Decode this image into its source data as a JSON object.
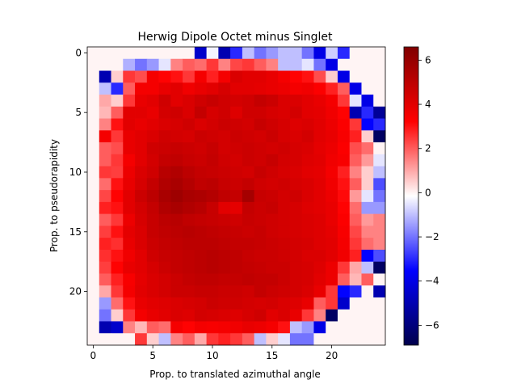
{
  "chart_data": {
    "type": "heatmap",
    "title": "Herwig Dipole Octet minus Singlet",
    "xlabel": "Prop. to translated azimuthal angle",
    "ylabel": "Prop. to pseudorapidity",
    "xlim": [
      -0.5,
      24.5
    ],
    "ylim": [
      24.5,
      -0.5
    ],
    "x_ticks": [
      "0",
      "5",
      "10",
      "15",
      "20"
    ],
    "y_ticks": [
      "0",
      "5",
      "10",
      "15",
      "20"
    ],
    "colormap": "seismic",
    "color_range": [
      -6.9,
      6.6
    ],
    "colorbar_ticks": [
      "−6",
      "−4",
      "−2",
      "0",
      "2",
      "4",
      "6"
    ],
    "values": [
      [
        0,
        0,
        0,
        0,
        0,
        0,
        0,
        0,
        0,
        -4.5,
        -0.3,
        -5,
        -3,
        -1,
        -2,
        -1.5,
        -1,
        -1,
        -2,
        -4,
        -0.8,
        -3,
        0,
        0,
        0
      ],
      [
        0,
        0,
        0,
        -1.2,
        -2,
        -1.5,
        -0.5,
        1.5,
        2,
        1.8,
        2.5,
        1.5,
        2.3,
        2.5,
        2,
        1.5,
        -1,
        -1,
        -0.5,
        -2,
        -4,
        0,
        0,
        0,
        0
      ],
      [
        0,
        -5,
        0.5,
        2.5,
        2.2,
        3.5,
        3.2,
        3,
        2.5,
        3.5,
        2.8,
        3.5,
        4.2,
        4,
        4,
        3.8,
        3.5,
        3.2,
        3,
        2.2,
        0.5,
        -4,
        0,
        0,
        0
      ],
      [
        0,
        -1,
        -3,
        2,
        3.5,
        3.5,
        3.8,
        4,
        3.6,
        3.8,
        4,
        4.3,
        4,
        4,
        3.9,
        3.8,
        3.7,
        3.5,
        3.6,
        3.3,
        2.8,
        2,
        -4,
        0,
        0
      ],
      [
        0,
        1,
        0.5,
        2.5,
        3.8,
        4,
        4.5,
        4,
        4.2,
        4.5,
        4.7,
        4.5,
        4.4,
        4.5,
        4.8,
        4.6,
        4.2,
        4.2,
        4,
        3.8,
        3.5,
        2.5,
        -0.5,
        -4,
        0
      ],
      [
        0,
        0.8,
        2,
        4,
        4,
        3.8,
        4.4,
        4.5,
        4.2,
        4.8,
        4.3,
        4.5,
        4.1,
        4.5,
        4.5,
        4.3,
        4.2,
        4.4,
        4,
        3.9,
        3.6,
        3.2,
        -5,
        -3,
        -5.5
      ],
      [
        0,
        1.5,
        3,
        4,
        3.8,
        4,
        4.2,
        4.3,
        4.5,
        4.2,
        4.4,
        4.6,
        4.5,
        4.4,
        4.7,
        4.5,
        4.3,
        4.1,
        4.2,
        4,
        3.7,
        3.3,
        2.5,
        -3.5,
        -3
      ],
      [
        0,
        3.5,
        2.5,
        3.8,
        4,
        4.2,
        4.5,
        4.4,
        4.3,
        4.6,
        4.5,
        4.4,
        4.6,
        4.5,
        4.4,
        4.6,
        4.3,
        4.2,
        4.4,
        4,
        3.8,
        3.4,
        2.8,
        0.5,
        -6.5
      ],
      [
        0,
        2,
        2.2,
        3.8,
        4,
        4.5,
        4.6,
        4.7,
        4.6,
        4.5,
        4.7,
        4.4,
        4.5,
        4.6,
        4.5,
        4.4,
        4.5,
        4.3,
        4.2,
        3.9,
        3.7,
        3.3,
        2.2,
        1.8,
        0
      ],
      [
        0,
        2,
        2.5,
        3.5,
        4,
        4.4,
        4.8,
        4.9,
        4.7,
        4.6,
        4.8,
        4.5,
        4.4,
        4.6,
        4.5,
        4.7,
        4.4,
        4.3,
        4.1,
        4,
        3.6,
        3.4,
        2,
        1.2,
        -0.5
      ],
      [
        0,
        2.5,
        2.4,
        3.7,
        4.2,
        4.5,
        5.1,
        5.3,
        5,
        4.8,
        4.7,
        4.6,
        4.5,
        4.4,
        4.7,
        4.5,
        4.3,
        4.2,
        4,
        3.9,
        3.5,
        2.8,
        1.5,
        0.5,
        -1
      ],
      [
        0,
        1.8,
        3,
        3.8,
        4.3,
        4.8,
        5.3,
        5.5,
        5.2,
        4.9,
        5,
        4.7,
        4.6,
        4.8,
        4.5,
        4.4,
        4.5,
        4.3,
        4.2,
        4,
        3.6,
        3,
        2,
        0.5,
        -2.5
      ],
      [
        0,
        2.3,
        3.2,
        4,
        4.6,
        5,
        5.5,
        5.8,
        5.5,
        5.4,
        5.2,
        4.9,
        4.8,
        5.6,
        4.7,
        4.6,
        4.4,
        4.5,
        4.2,
        4,
        3.7,
        3.1,
        1.2,
        -0.5,
        -2
      ],
      [
        0,
        2.8,
        3,
        4,
        4.4,
        4.8,
        5.3,
        5.5,
        5.3,
        5.1,
        4.7,
        4,
        3.9,
        4.8,
        4.6,
        4.7,
        4.4,
        4.3,
        4.1,
        4,
        3.8,
        3.2,
        1.8,
        -1.5,
        -1.5
      ],
      [
        0,
        2,
        2.5,
        3.7,
        4.3,
        4.7,
        5,
        5.1,
        4.9,
        4.8,
        4.7,
        4.6,
        4.5,
        4.7,
        4.6,
        4.5,
        4.4,
        4.3,
        4.2,
        4.1,
        3.8,
        3.3,
        2,
        1.2,
        1.5
      ],
      [
        0,
        2.4,
        3,
        3.9,
        4.2,
        4.7,
        4.9,
        5,
        5.1,
        5,
        4.9,
        4.8,
        4.7,
        4.6,
        4.7,
        4.5,
        4.4,
        4.3,
        4.2,
        4.1,
        3.9,
        3.4,
        2.3,
        1.5,
        1.5
      ],
      [
        0,
        2.8,
        2.6,
        3.8,
        4.2,
        4.6,
        4.8,
        4.9,
        5,
        5,
        5,
        4.9,
        4.8,
        4.8,
        4.7,
        4.6,
        4.5,
        4.4,
        4.3,
        4.1,
        4,
        3.5,
        2.5,
        1.8,
        1.5
      ],
      [
        0,
        2.6,
        3,
        3.6,
        4,
        4.5,
        4.7,
        4.8,
        4.9,
        5,
        5.1,
        5,
        4.9,
        4.7,
        4.6,
        4.6,
        4.5,
        4.4,
        4.2,
        4.2,
        4,
        3.6,
        2.8,
        -3.5,
        -2.5
      ],
      [
        0,
        2.4,
        3.2,
        3.8,
        4,
        4.3,
        4.6,
        4.8,
        4.9,
        5,
        5.1,
        5,
        4.9,
        4.8,
        4.7,
        4.6,
        4.6,
        4.4,
        4.3,
        4.1,
        3.7,
        2.5,
        1,
        -1,
        -6.5
      ],
      [
        0,
        2,
        2.8,
        3.4,
        3.9,
        4.2,
        4.4,
        4.6,
        4.8,
        4.9,
        4.9,
        4.8,
        4.8,
        4.9,
        4.8,
        4.8,
        4.6,
        4.4,
        4.3,
        4,
        3.7,
        2,
        0.8,
        2,
        0
      ],
      [
        0,
        1,
        2.5,
        3.5,
        4,
        4.2,
        4.4,
        4.6,
        4.6,
        4.7,
        4.7,
        4.6,
        4.6,
        4.5,
        4.8,
        4.6,
        4.5,
        4.4,
        4.2,
        3.8,
        2.5,
        -3.5,
        -3,
        0,
        -5
      ],
      [
        0,
        -1.5,
        1.8,
        3,
        3.8,
        4,
        4.1,
        4.2,
        4.3,
        4.4,
        4.6,
        4.5,
        4.5,
        4.4,
        4.3,
        4.4,
        4.2,
        4.1,
        3.8,
        2,
        2.5,
        -4.5,
        0,
        0,
        0
      ],
      [
        0,
        -2,
        0.5,
        2.5,
        3.5,
        3.8,
        4,
        4.2,
        4.1,
        4.4,
        4.3,
        4.2,
        4.1,
        4.3,
        4.5,
        4,
        4.2,
        3.8,
        2.5,
        1.5,
        -6.5,
        0,
        0,
        0,
        0
      ],
      [
        0,
        -5,
        -4.5,
        1.5,
        0.8,
        2,
        1.8,
        3.5,
        3.2,
        3.5,
        3.4,
        3.5,
        3.6,
        3.8,
        3.7,
        3.5,
        3,
        -1,
        -1.5,
        -4,
        0,
        0,
        0,
        0,
        0
      ],
      [
        0,
        0,
        0,
        0,
        2.5,
        0.5,
        -1,
        1.5,
        2,
        1,
        2.5,
        2.8,
        2.5,
        2,
        -1,
        0.5,
        -0.5,
        -2,
        -2,
        0,
        0,
        0,
        0,
        0,
        0
      ]
    ]
  }
}
